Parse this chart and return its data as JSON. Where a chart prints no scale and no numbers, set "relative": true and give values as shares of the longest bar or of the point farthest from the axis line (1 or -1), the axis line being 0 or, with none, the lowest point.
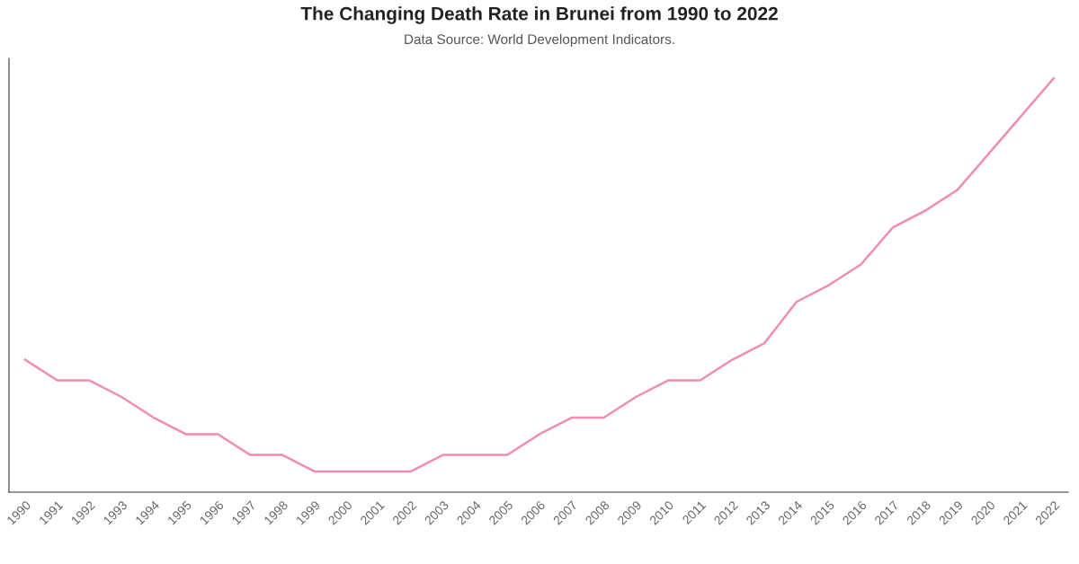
{
  "chart_data": {
    "type": "line",
    "title": "The Changing Death Rate in Brunei from 1990 to 2022",
    "subtitle": "Data Source: World Development Indicators.",
    "relative": true,
    "grid": false,
    "legend": false,
    "marker": "none",
    "line_style": "solid",
    "categories": [
      "1990",
      "1991",
      "1992",
      "1993",
      "1994",
      "1995",
      "1996",
      "1997",
      "1998",
      "1999",
      "2000",
      "2001",
      "2002",
      "2003",
      "2004",
      "2005",
      "2006",
      "2007",
      "2008",
      "2009",
      "2010",
      "2011",
      "2012",
      "2013",
      "2014",
      "2015",
      "2016",
      "2017",
      "2018",
      "2019",
      "2020",
      "2021",
      "2022"
    ],
    "series": [
      {
        "color": "#f28cb4",
        "values": [
          0.32,
          0.27,
          0.27,
          0.23,
          0.18,
          0.14,
          0.14,
          0.09,
          0.09,
          0.05,
          0.05,
          0.05,
          0.05,
          0.09,
          0.09,
          0.09,
          0.14,
          0.18,
          0.18,
          0.23,
          0.27,
          0.27,
          0.32,
          0.36,
          0.46,
          0.5,
          0.55,
          0.64,
          0.68,
          0.73,
          0.82,
          0.91,
          1
        ]
      }
    ]
  }
}
